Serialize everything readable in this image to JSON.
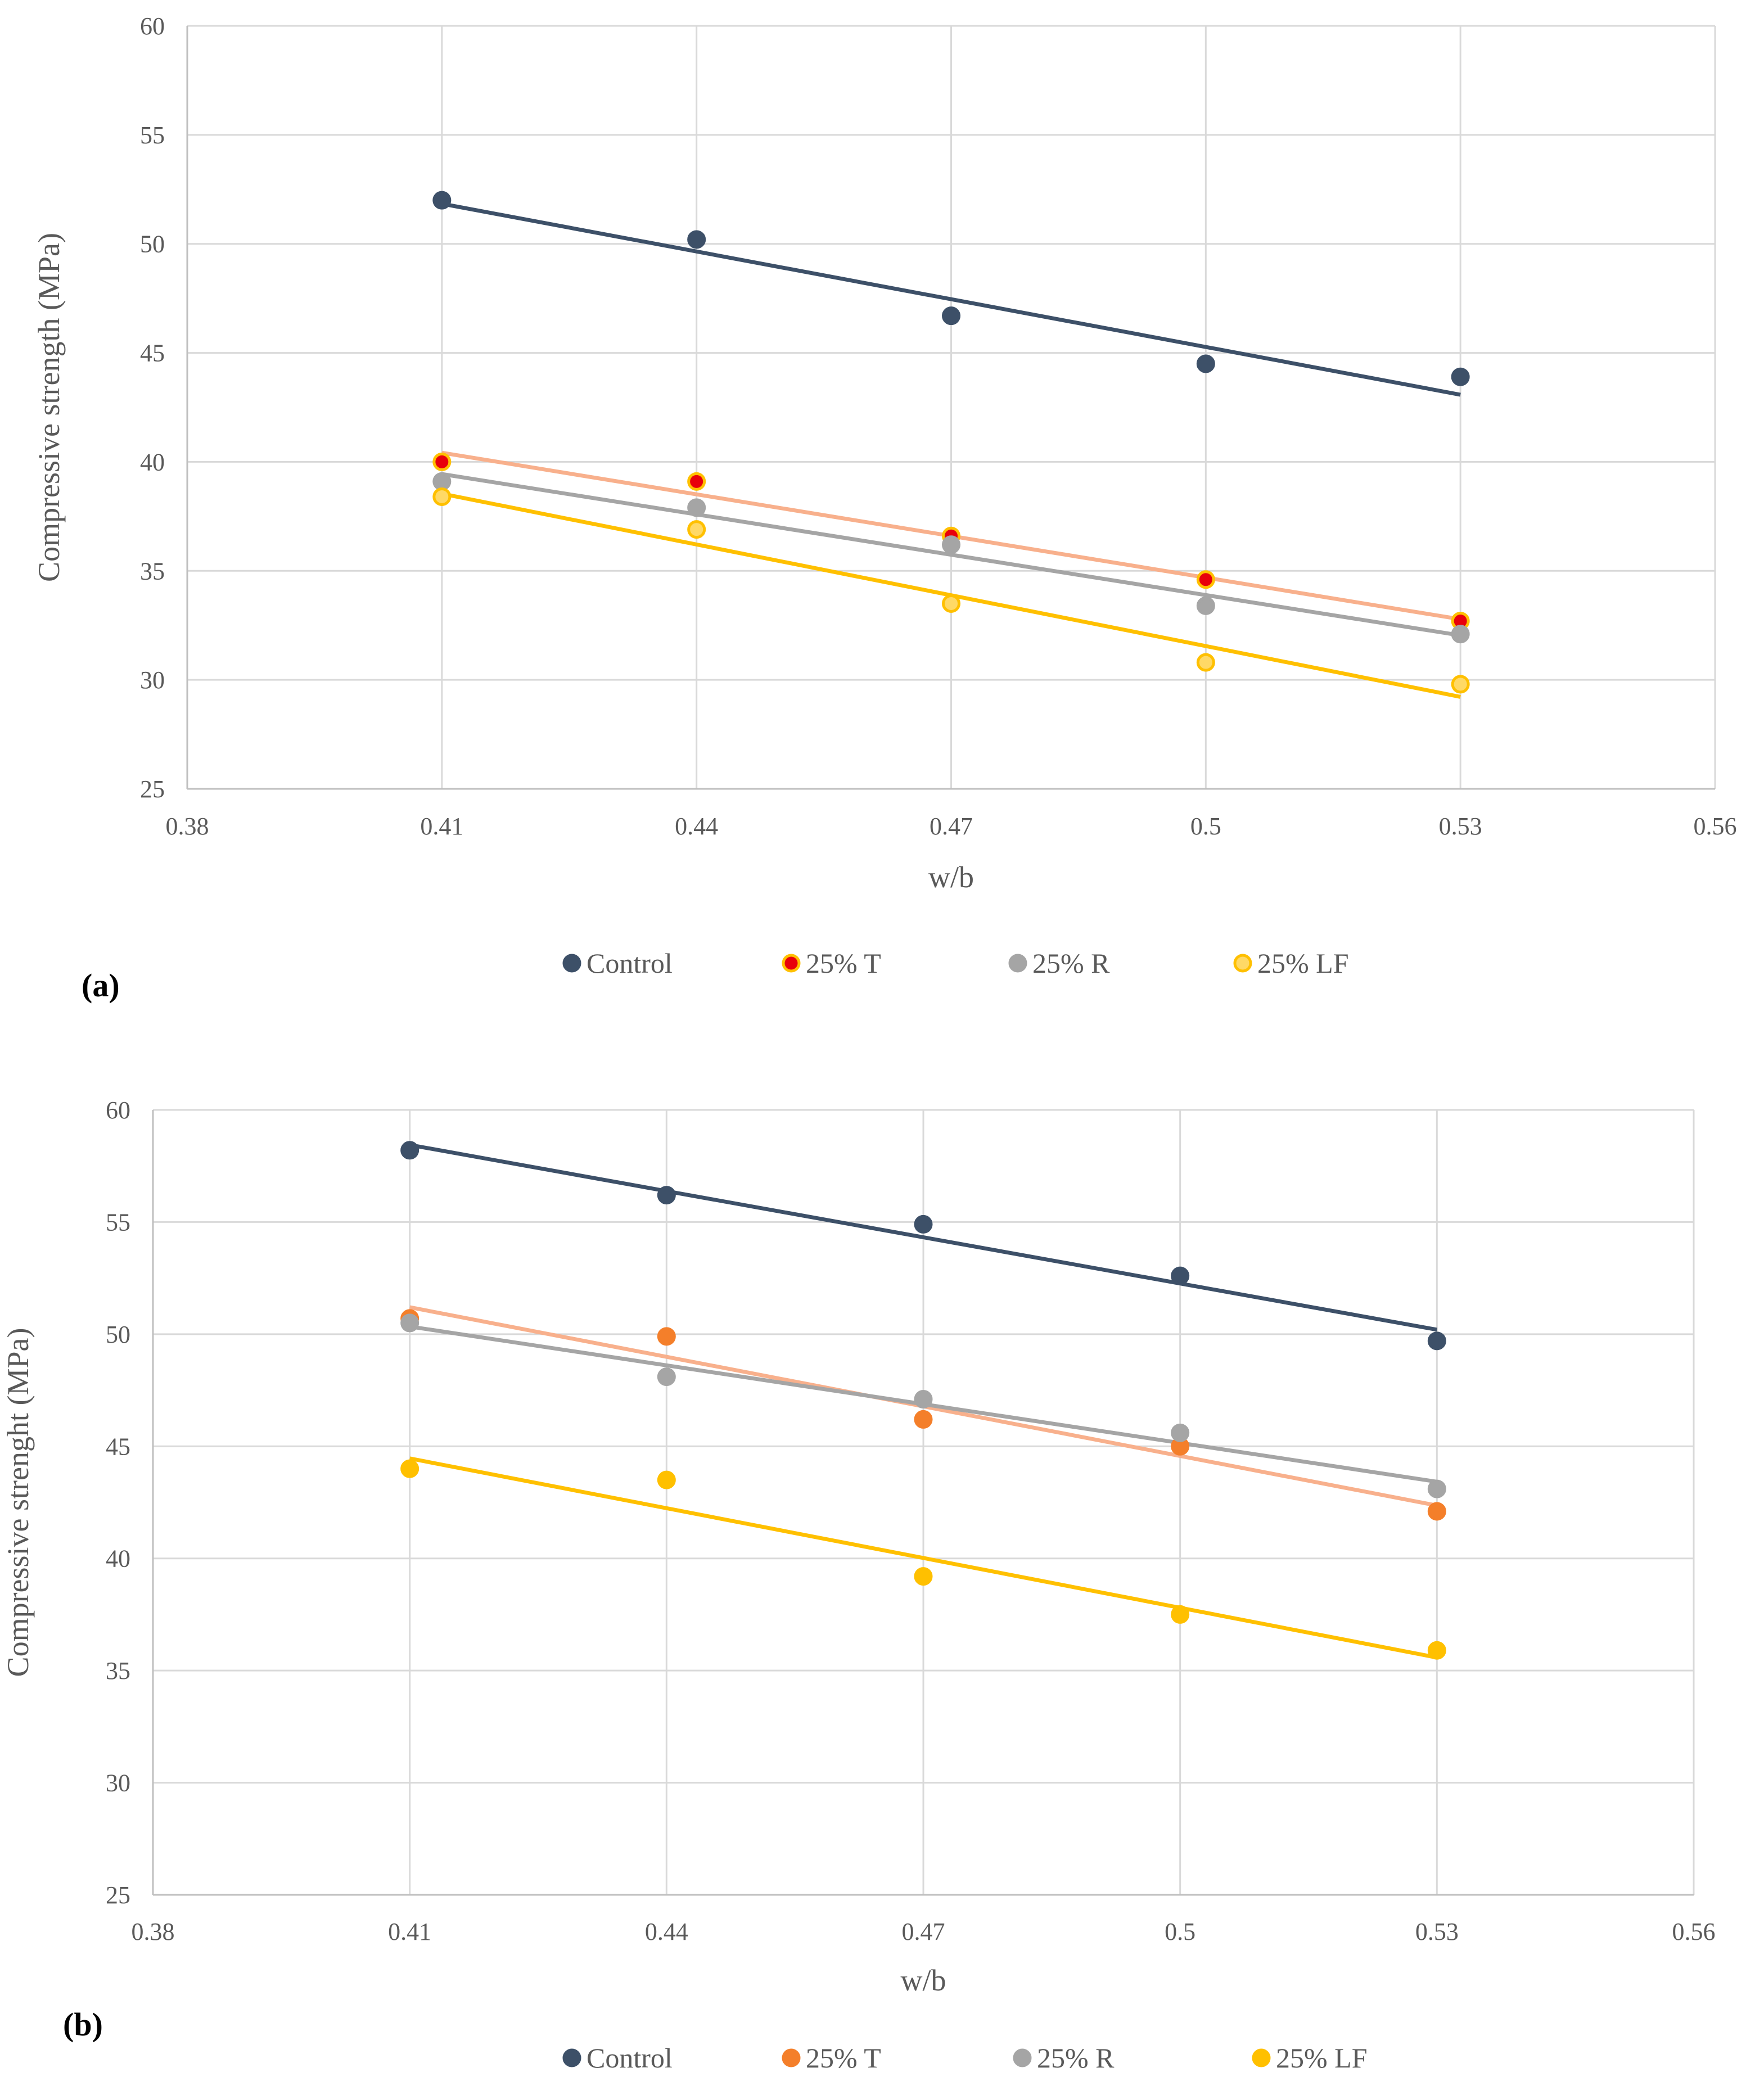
{
  "chart_data": [
    {
      "type": "scatter",
      "panel_label": "(a)",
      "xlabel": "w/b",
      "ylabel": "Compressive strength (MPa)",
      "xlim": [
        0.38,
        0.56
      ],
      "ylim": [
        25,
        60
      ],
      "x_ticks": [
        "0.38",
        "0.41",
        "0.44",
        "0.47",
        "0.5",
        "0.53",
        "0.56"
      ],
      "y_ticks": [
        "25",
        "30",
        "35",
        "40",
        "45",
        "50",
        "55",
        "60"
      ],
      "grid": true,
      "legend_position": "bottom",
      "trendlines": "linear",
      "series": [
        {
          "name": "Control",
          "x": [
            0.41,
            0.44,
            0.47,
            0.5,
            0.53
          ],
          "y": [
            52.0,
            50.2,
            46.7,
            44.5,
            43.9
          ],
          "marker_color": "#3d5068",
          "marker_edge": "#3d5068",
          "line_color": "#3d5068"
        },
        {
          "name": "25% T",
          "x": [
            0.41,
            0.44,
            0.47,
            0.5,
            0.53
          ],
          "y": [
            40.0,
            39.1,
            36.6,
            34.6,
            32.7
          ],
          "marker_color": "#e8000b",
          "marker_edge": "#ffc000",
          "line_color": "#f8b08c"
        },
        {
          "name": "25% R",
          "x": [
            0.41,
            0.44,
            0.47,
            0.5,
            0.53
          ],
          "y": [
            39.1,
            37.9,
            36.2,
            33.4,
            32.1
          ],
          "marker_color": "#a5a5a5",
          "marker_edge": "#a5a5a5",
          "line_color": "#a5a5a5"
        },
        {
          "name": "25% LF",
          "x": [
            0.41,
            0.44,
            0.47,
            0.5,
            0.53
          ],
          "y": [
            38.4,
            36.9,
            33.5,
            30.8,
            29.8
          ],
          "marker_color": "#ffd966",
          "marker_edge": "#ffc000",
          "line_color": "#ffc000"
        }
      ]
    },
    {
      "type": "scatter",
      "panel_label": "(b)",
      "xlabel": "w/b",
      "ylabel": "Compressive strenght (MPa)",
      "xlim": [
        0.38,
        0.56
      ],
      "ylim": [
        25,
        60
      ],
      "x_ticks": [
        "0.38",
        "0.41",
        "0.44",
        "0.47",
        "0.5",
        "0.53",
        "0.56"
      ],
      "y_ticks": [
        "25",
        "30",
        "35",
        "40",
        "45",
        "50",
        "55",
        "60"
      ],
      "grid": true,
      "legend_position": "bottom",
      "trendlines": "linear",
      "series": [
        {
          "name": "Control",
          "x": [
            0.41,
            0.44,
            0.47,
            0.5,
            0.53
          ],
          "y": [
            58.2,
            56.2,
            54.9,
            52.6,
            49.7
          ],
          "marker_color": "#3d5068",
          "marker_edge": "#3d5068",
          "line_color": "#3d5068"
        },
        {
          "name": "25% T",
          "x": [
            0.41,
            0.44,
            0.47,
            0.5,
            0.53
          ],
          "y": [
            50.7,
            49.9,
            46.2,
            45.0,
            42.1
          ],
          "marker_color": "#f47f2a",
          "marker_edge": "#f47f2a",
          "line_color": "#f8b08c"
        },
        {
          "name": "25% R",
          "x": [
            0.41,
            0.44,
            0.47,
            0.5,
            0.53
          ],
          "y": [
            50.5,
            48.1,
            47.1,
            45.6,
            43.1
          ],
          "marker_color": "#a5a5a5",
          "marker_edge": "#a5a5a5",
          "line_color": "#a5a5a5"
        },
        {
          "name": "25% LF",
          "x": [
            0.41,
            0.44,
            0.47,
            0.5,
            0.53
          ],
          "y": [
            44.0,
            43.5,
            39.2,
            37.5,
            35.9
          ],
          "marker_color": "#ffc000",
          "marker_edge": "#ffc000",
          "line_color": "#ffc000"
        }
      ]
    }
  ]
}
